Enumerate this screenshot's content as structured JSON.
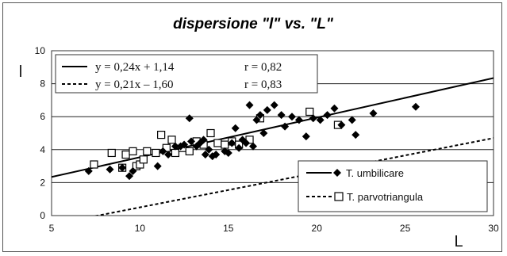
{
  "chart_data": {
    "type": "scatter",
    "title": "dispersione \"l\" vs. \"L\"",
    "xlabel": "L",
    "ylabel": "l",
    "xlim": [
      5,
      30
    ],
    "ylim": [
      0,
      10
    ],
    "xticks": [
      5,
      10,
      15,
      20,
      25,
      30
    ],
    "yticks": [
      0,
      2,
      4,
      6,
      8,
      10
    ],
    "grid": "horizontal",
    "legend_position": "bottom-right",
    "series": [
      {
        "name": "T. umbilicare",
        "marker": "filled-diamond",
        "color": "#000000",
        "points": [
          [
            7.1,
            2.7
          ],
          [
            8.3,
            2.8
          ],
          [
            9.0,
            2.9
          ],
          [
            9.4,
            2.4
          ],
          [
            9.6,
            2.7
          ],
          [
            11.0,
            3.0
          ],
          [
            11.3,
            3.9
          ],
          [
            11.6,
            3.7
          ],
          [
            12.0,
            4.2
          ],
          [
            12.3,
            4.2
          ],
          [
            12.5,
            4.3
          ],
          [
            12.8,
            5.9
          ],
          [
            12.9,
            4.5
          ],
          [
            13.2,
            4.2
          ],
          [
            13.4,
            4.4
          ],
          [
            13.6,
            4.6
          ],
          [
            13.7,
            3.7
          ],
          [
            13.9,
            4.0
          ],
          [
            14.1,
            3.6
          ],
          [
            14.3,
            3.7
          ],
          [
            14.8,
            3.9
          ],
          [
            15.0,
            3.8
          ],
          [
            15.2,
            4.4
          ],
          [
            15.4,
            5.3
          ],
          [
            15.6,
            4.1
          ],
          [
            15.8,
            4.6
          ],
          [
            16.0,
            4.4
          ],
          [
            16.2,
            6.7
          ],
          [
            16.4,
            4.2
          ],
          [
            16.6,
            5.8
          ],
          [
            16.8,
            6.1
          ],
          [
            17.0,
            5.0
          ],
          [
            17.2,
            6.4
          ],
          [
            17.6,
            6.7
          ],
          [
            18.0,
            6.1
          ],
          [
            18.2,
            5.4
          ],
          [
            18.6,
            6.0
          ],
          [
            19.0,
            5.8
          ],
          [
            19.4,
            4.8
          ],
          [
            19.8,
            5.9
          ],
          [
            20.2,
            5.8
          ],
          [
            20.6,
            6.1
          ],
          [
            21.0,
            6.5
          ],
          [
            21.4,
            5.5
          ],
          [
            22.0,
            5.8
          ],
          [
            22.2,
            4.9
          ],
          [
            23.2,
            6.2
          ],
          [
            25.6,
            6.6
          ]
        ],
        "fit": {
          "slope": 0.24,
          "intercept": 1.14,
          "r": 0.82,
          "style": "solid"
        }
      },
      {
        "name": "T. parvotriangula",
        "marker": "open-square",
        "color": "#000000",
        "points": [
          [
            7.4,
            3.1
          ],
          [
            8.4,
            3.8
          ],
          [
            9.0,
            2.9
          ],
          [
            9.2,
            3.7
          ],
          [
            9.6,
            3.9
          ],
          [
            9.8,
            3.0
          ],
          [
            10.0,
            3.1
          ],
          [
            10.2,
            3.4
          ],
          [
            10.4,
            3.9
          ],
          [
            10.9,
            3.8
          ],
          [
            11.2,
            4.9
          ],
          [
            11.5,
            4.1
          ],
          [
            11.8,
            4.6
          ],
          [
            12.0,
            3.8
          ],
          [
            12.4,
            4.1
          ],
          [
            12.8,
            3.9
          ],
          [
            13.2,
            4.5
          ],
          [
            13.6,
            4.3
          ],
          [
            14.0,
            5.0
          ],
          [
            14.4,
            4.4
          ],
          [
            14.8,
            4.3
          ],
          [
            15.2,
            4.5
          ],
          [
            15.6,
            4.3
          ],
          [
            16.2,
            4.6
          ],
          [
            16.8,
            5.9
          ],
          [
            19.6,
            6.3
          ],
          [
            21.2,
            5.5
          ]
        ],
        "fit": {
          "slope": 0.21,
          "intercept": -1.6,
          "r": 0.83,
          "style": "dashed"
        }
      }
    ],
    "equations": [
      {
        "text": "y = 0,24x + 1,14",
        "r_text": "r = 0,82",
        "style": "solid"
      },
      {
        "text": "y = 0,21x – 1,60",
        "r_text": "r = 0,83",
        "style": "dashed"
      }
    ]
  }
}
